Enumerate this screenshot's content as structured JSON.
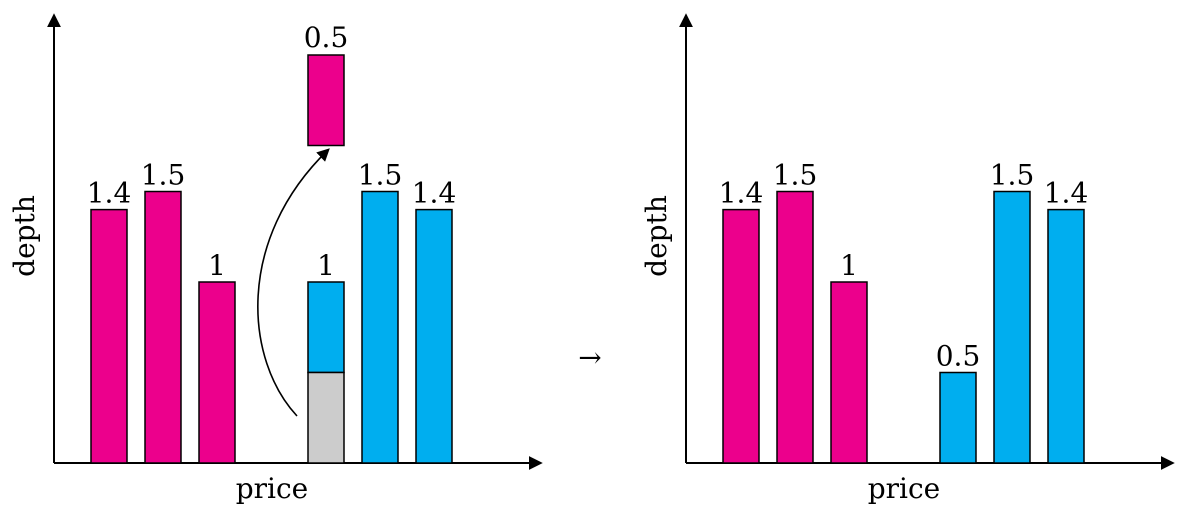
{
  "colors": {
    "bid": "#EC008C",
    "ask": "#00AEEF",
    "removed": "#CCCCCC",
    "axis": "#000000"
  },
  "arrow_symbol": "→",
  "panels": [
    {
      "xlabel": "price",
      "ylabel": "depth",
      "bars": [
        {
          "side": "bid",
          "label": "1.4",
          "value": 1.4
        },
        {
          "side": "bid",
          "label": "1.5",
          "value": 1.5
        },
        {
          "side": "bid",
          "label": "1",
          "value": 1.0
        },
        {
          "side": "ask",
          "label": "1",
          "value": 1.0,
          "removed_portion": 0.5
        },
        {
          "side": "ask",
          "label": "1.5",
          "value": 1.5
        },
        {
          "side": "ask",
          "label": "1.4",
          "value": 1.4
        }
      ],
      "moved_order": {
        "side": "bid",
        "label": "0.5",
        "value": 0.5
      }
    },
    {
      "xlabel": "price",
      "ylabel": "depth",
      "bars": [
        {
          "side": "bid",
          "label": "1.4",
          "value": 1.4
        },
        {
          "side": "bid",
          "label": "1.5",
          "value": 1.5
        },
        {
          "side": "bid",
          "label": "1",
          "value": 1.0
        },
        {
          "side": "ask",
          "label": "0.5",
          "value": 0.5
        },
        {
          "side": "ask",
          "label": "1.5",
          "value": 1.5
        },
        {
          "side": "ask",
          "label": "1.4",
          "value": 1.4
        }
      ]
    }
  ]
}
